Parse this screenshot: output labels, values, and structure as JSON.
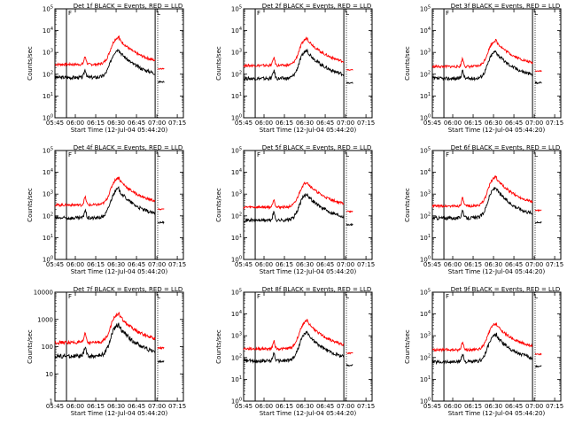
{
  "chart_data": [
    {
      "type": "line",
      "title": "Det 1f BLACK = Events, RED = LLD",
      "xlabel": "Start Time (12-Jul-04 05:44:20)",
      "ylabel": "Counts/sec",
      "scale": "log",
      "ylim_exp": [
        0,
        5
      ],
      "ytick_labels": [
        "10^0",
        "10^1",
        "10^2",
        "10^3",
        "10^4",
        "10^5"
      ],
      "xtick_labels": [
        "05:45",
        "06:00",
        "06:15",
        "06:30",
        "06:45",
        "07:00",
        "07:15"
      ],
      "red_peak_log": 3.75,
      "black_peak_log": 3.2,
      "red_base_log": 2.45,
      "black_base_log": 1.85,
      "series": [
        {
          "name": "Events",
          "color": "#000000"
        },
        {
          "name": "LLD",
          "color": "#ff0000"
        }
      ]
    },
    {
      "type": "line",
      "title": "Det 2f BLACK = Events, RED = LLD",
      "xlabel": "Start Time (12-Jul-04 05:44:20)",
      "ylabel": "Counts/sec",
      "scale": "log",
      "ylim_exp": [
        0,
        5
      ],
      "ytick_labels": [
        "10^0",
        "10^1",
        "10^2",
        "10^3",
        "10^4",
        "10^5"
      ],
      "xtick_labels": [
        "05:45",
        "06:00",
        "06:15",
        "06:30",
        "06:45",
        "07:00",
        "07:15"
      ],
      "red_peak_log": 3.7,
      "black_peak_log": 3.15,
      "red_base_log": 2.4,
      "black_base_log": 1.8,
      "series": [
        {
          "name": "Events",
          "color": "#000000"
        },
        {
          "name": "LLD",
          "color": "#ff0000"
        }
      ]
    },
    {
      "type": "line",
      "title": "Det 3f BLACK = Events, RED = LLD",
      "xlabel": "Start Time (12-Jul-04 05:44:20)",
      "ylabel": "Counts/sec",
      "scale": "log",
      "ylim_exp": [
        0,
        5
      ],
      "ytick_labels": [
        "10^0",
        "10^1",
        "10^2",
        "10^3",
        "10^4",
        "10^5"
      ],
      "xtick_labels": [
        "05:45",
        "06:00",
        "06:15",
        "06:30",
        "06:45",
        "07:00",
        "07:15"
      ],
      "red_peak_log": 3.6,
      "black_peak_log": 3.1,
      "red_base_log": 2.35,
      "black_base_log": 1.8,
      "series": [
        {
          "name": "Events",
          "color": "#000000"
        },
        {
          "name": "LLD",
          "color": "#ff0000"
        }
      ]
    },
    {
      "type": "line",
      "title": "Det 4f BLACK = Events, RED = LLD",
      "xlabel": "Start Time (12-Jul-04 05:44:20)",
      "ylabel": "Counts/sec",
      "scale": "log",
      "ylim_exp": [
        0,
        5
      ],
      "ytick_labels": [
        "10^0",
        "10^1",
        "10^2",
        "10^3",
        "10^4",
        "10^5"
      ],
      "xtick_labels": [
        "05:45",
        "06:00",
        "06:15",
        "06:30",
        "06:45",
        "07:00",
        "07:15"
      ],
      "red_peak_log": 3.8,
      "black_peak_log": 3.3,
      "red_base_log": 2.5,
      "black_base_log": 1.9,
      "series": [
        {
          "name": "Events",
          "color": "#000000"
        },
        {
          "name": "LLD",
          "color": "#ff0000"
        }
      ]
    },
    {
      "type": "line",
      "title": "Det 5f BLACK = Events, RED = LLD",
      "xlabel": "Start Time (12-Jul-04 05:44:20)",
      "ylabel": "Counts/sec",
      "scale": "log",
      "ylim_exp": [
        0,
        5
      ],
      "ytick_labels": [
        "10^0",
        "10^1",
        "10^2",
        "10^3",
        "10^4",
        "10^5"
      ],
      "xtick_labels": [
        "05:45",
        "06:00",
        "06:15",
        "06:30",
        "06:45",
        "07:00",
        "07:15"
      ],
      "red_peak_log": 3.6,
      "black_peak_log": 3.05,
      "red_base_log": 2.4,
      "black_base_log": 1.8,
      "series": [
        {
          "name": "Events",
          "color": "#000000"
        },
        {
          "name": "LLD",
          "color": "#ff0000"
        }
      ]
    },
    {
      "type": "line",
      "title": "Det 6f BLACK = Events, RED = LLD",
      "xlabel": "Start Time (12-Jul-04 05:44:20)",
      "ylabel": "Counts/sec",
      "scale": "log",
      "ylim_exp": [
        0,
        5
      ],
      "ytick_labels": [
        "10^0",
        "10^1",
        "10^2",
        "10^3",
        "10^4",
        "10^5"
      ],
      "xtick_labels": [
        "05:45",
        "06:00",
        "06:15",
        "06:30",
        "06:45",
        "07:00",
        "07:15"
      ],
      "red_peak_log": 3.85,
      "black_peak_log": 3.35,
      "red_base_log": 2.45,
      "black_base_log": 1.9,
      "series": [
        {
          "name": "Events",
          "color": "#000000"
        },
        {
          "name": "LLD",
          "color": "#ff0000"
        }
      ]
    },
    {
      "type": "line",
      "title": "Det 7f BLACK = Events, RED = LLD",
      "xlabel": "Start Time (12-Jul-04 05:44:20)",
      "ylabel": "Counts/sec",
      "scale": "log",
      "ylim_exp": [
        0,
        4
      ],
      "ytick_labels": [
        "1",
        "10",
        "100",
        "1000",
        "10000"
      ],
      "xtick_labels": [
        "05:45",
        "06:00",
        "06:15",
        "06:30",
        "06:45",
        "07:00",
        "07:15"
      ],
      "red_peak_log": 3.25,
      "black_peak_log": 2.85,
      "red_base_log": 2.15,
      "black_base_log": 1.65,
      "series": [
        {
          "name": "Events",
          "color": "#000000"
        },
        {
          "name": "LLD",
          "color": "#ff0000"
        }
      ]
    },
    {
      "type": "line",
      "title": "Det 8f BLACK = Events, RED = LLD",
      "xlabel": "Start Time (12-Jul-04 05:44:20)",
      "ylabel": "Counts/sec",
      "scale": "log",
      "ylim_exp": [
        0,
        5
      ],
      "ytick_labels": [
        "10^0",
        "10^1",
        "10^2",
        "10^3",
        "10^4",
        "10^5"
      ],
      "xtick_labels": [
        "05:45",
        "06:00",
        "06:15",
        "06:30",
        "06:45",
        "07:00",
        "07:15"
      ],
      "red_peak_log": 3.75,
      "black_peak_log": 3.2,
      "red_base_log": 2.4,
      "black_base_log": 1.85,
      "series": [
        {
          "name": "Events",
          "color": "#000000"
        },
        {
          "name": "LLD",
          "color": "#ff0000"
        }
      ]
    },
    {
      "type": "line",
      "title": "Det 9f BLACK = Events, RED = LLD",
      "xlabel": "Start Time (12-Jul-04 05:44:20)",
      "ylabel": "Counts/sec",
      "scale": "log",
      "ylim_exp": [
        0,
        5
      ],
      "ytick_labels": [
        "10^0",
        "10^1",
        "10^2",
        "10^3",
        "10^4",
        "10^5"
      ],
      "xtick_labels": [
        "05:45",
        "06:00",
        "06:15",
        "06:30",
        "06:45",
        "07:00",
        "07:15"
      ],
      "red_peak_log": 3.6,
      "black_peak_log": 3.1,
      "red_base_log": 2.35,
      "black_base_log": 1.8,
      "series": [
        {
          "name": "Events",
          "color": "#000000"
        },
        {
          "name": "LLD",
          "color": "#ff0000"
        }
      ]
    }
  ]
}
